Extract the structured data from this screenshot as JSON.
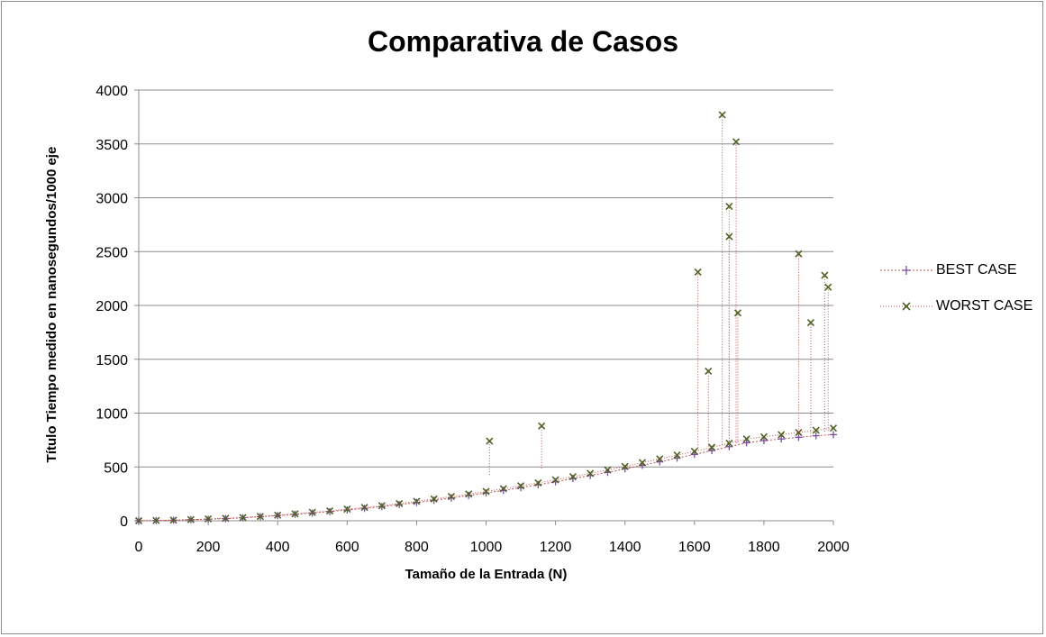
{
  "chart_data": {
    "type": "line",
    "title": "Comparativa de Casos",
    "xlabel": "Tamaño  de la Entrada (N)",
    "ylabel": "Título Tiempo medido en nanosegundos/1000 eje",
    "xlim": [
      0,
      2000
    ],
    "ylim": [
      0,
      4000
    ],
    "x_ticks": [
      "0",
      "200",
      "400",
      "600",
      "800",
      "1000",
      "1200",
      "1400",
      "1600",
      "1800",
      "2000"
    ],
    "y_ticks": [
      "0",
      "500",
      "1000",
      "1500",
      "2000",
      "2500",
      "3000",
      "3500",
      "4000"
    ],
    "grid": "horizontal",
    "legend_position": "right",
    "series": [
      {
        "name": "BEST CASE",
        "color": "#7a4fa0",
        "line_color": "#c0504d",
        "marker": "plus",
        "x": [
          0,
          50,
          100,
          150,
          200,
          250,
          300,
          350,
          400,
          450,
          500,
          550,
          600,
          650,
          700,
          750,
          800,
          850,
          900,
          950,
          1000,
          1050,
          1100,
          1150,
          1200,
          1250,
          1300,
          1350,
          1400,
          1450,
          1500,
          1550,
          1600,
          1650,
          1700,
          1750,
          1800,
          1850,
          1900,
          1950,
          2000
        ],
        "values": [
          0,
          2,
          5,
          10,
          15,
          20,
          28,
          38,
          48,
          60,
          72,
          86,
          100,
          115,
          132,
          150,
          170,
          190,
          212,
          235,
          258,
          282,
          308,
          335,
          362,
          392,
          420,
          450,
          482,
          515,
          548,
          582,
          616,
          652,
          688,
          725,
          745,
          760,
          775,
          790,
          800
        ]
      },
      {
        "name": "WORST CASE",
        "color": "#4f6228",
        "line_color": "#c0504d",
        "marker": "x",
        "x": [
          0,
          50,
          100,
          150,
          200,
          250,
          300,
          350,
          400,
          450,
          500,
          550,
          600,
          650,
          700,
          750,
          800,
          850,
          900,
          950,
          1000,
          1050,
          1100,
          1150,
          1200,
          1250,
          1300,
          1350,
          1400,
          1450,
          1500,
          1550,
          1600,
          1650,
          1700,
          1750,
          1800,
          1850,
          1900,
          1950,
          2000
        ],
        "values": [
          0,
          3,
          6,
          11,
          17,
          22,
          30,
          40,
          52,
          64,
          78,
          92,
          108,
          124,
          140,
          160,
          180,
          202,
          225,
          248,
          272,
          298,
          325,
          352,
          380,
          410,
          440,
          472,
          505,
          540,
          575,
          610,
          645,
          682,
          720,
          760,
          780,
          800,
          820,
          840,
          860
        ],
        "peaks": [
          {
            "x": 1680,
            "y": 3770
          },
          {
            "x": 1720,
            "y": 3520
          },
          {
            "x": 1700,
            "y": 2920
          },
          {
            "x": 1700,
            "y": 2640
          },
          {
            "x": 1610,
            "y": 2310
          },
          {
            "x": 1900,
            "y": 2480
          },
          {
            "x": 1975,
            "y": 2280
          },
          {
            "x": 1985,
            "y": 2170
          },
          {
            "x": 1725,
            "y": 1930
          },
          {
            "x": 1935,
            "y": 1840
          },
          {
            "x": 1640,
            "y": 1390
          },
          {
            "x": 1160,
            "y": 880
          },
          {
            "x": 1010,
            "y": 740
          }
        ]
      }
    ]
  }
}
